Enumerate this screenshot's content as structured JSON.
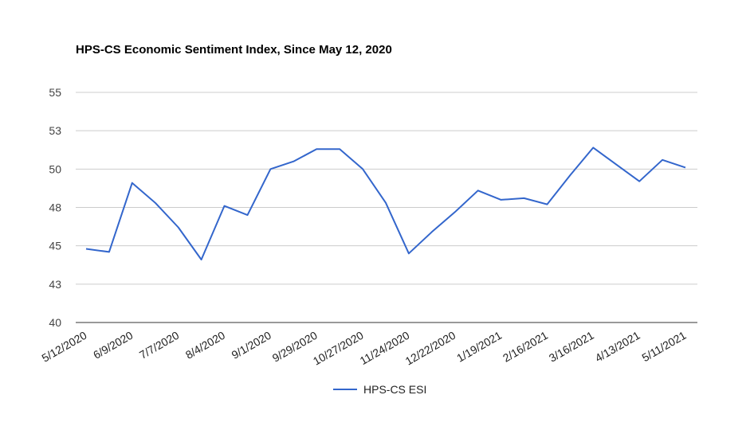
{
  "chart_data": {
    "type": "line",
    "title": "HPS-CS Economic Sentiment Index, Since May 12, 2020",
    "xlabel": "",
    "ylabel": "",
    "ylim": [
      40,
      55
    ],
    "y_ticks": [
      "55",
      "53",
      "50",
      "48",
      "45",
      "43",
      "40"
    ],
    "y_tick_values": [
      55,
      52.5,
      50,
      47.5,
      45,
      42.5,
      40
    ],
    "x_tick_labels": [
      "5/12/2020",
      "6/9/2020",
      "7/7/2020",
      "8/4/2020",
      "9/1/2020",
      "9/29/2020",
      "10/27/2020",
      "11/24/2020",
      "12/22/2020",
      "1/19/2021",
      "2/16/2021",
      "3/16/2021",
      "4/13/2021",
      "5/11/2021"
    ],
    "grid": true,
    "legend_position": "bottom",
    "series": [
      {
        "name": "HPS-CS ESI",
        "color": "#3366cc",
        "values": [
          44.8,
          44.6,
          49.1,
          47.8,
          46.2,
          44.1,
          47.6,
          47.0,
          50.0,
          50.5,
          51.3,
          51.3,
          50.0,
          47.8,
          44.5,
          45.9,
          47.2,
          48.6,
          48.0,
          48.1,
          47.7,
          49.6,
          51.4,
          50.3,
          49.2,
          50.6,
          50.1
        ]
      }
    ]
  },
  "legend": {
    "label": "HPS-CS ESI",
    "color": "#3366cc"
  }
}
